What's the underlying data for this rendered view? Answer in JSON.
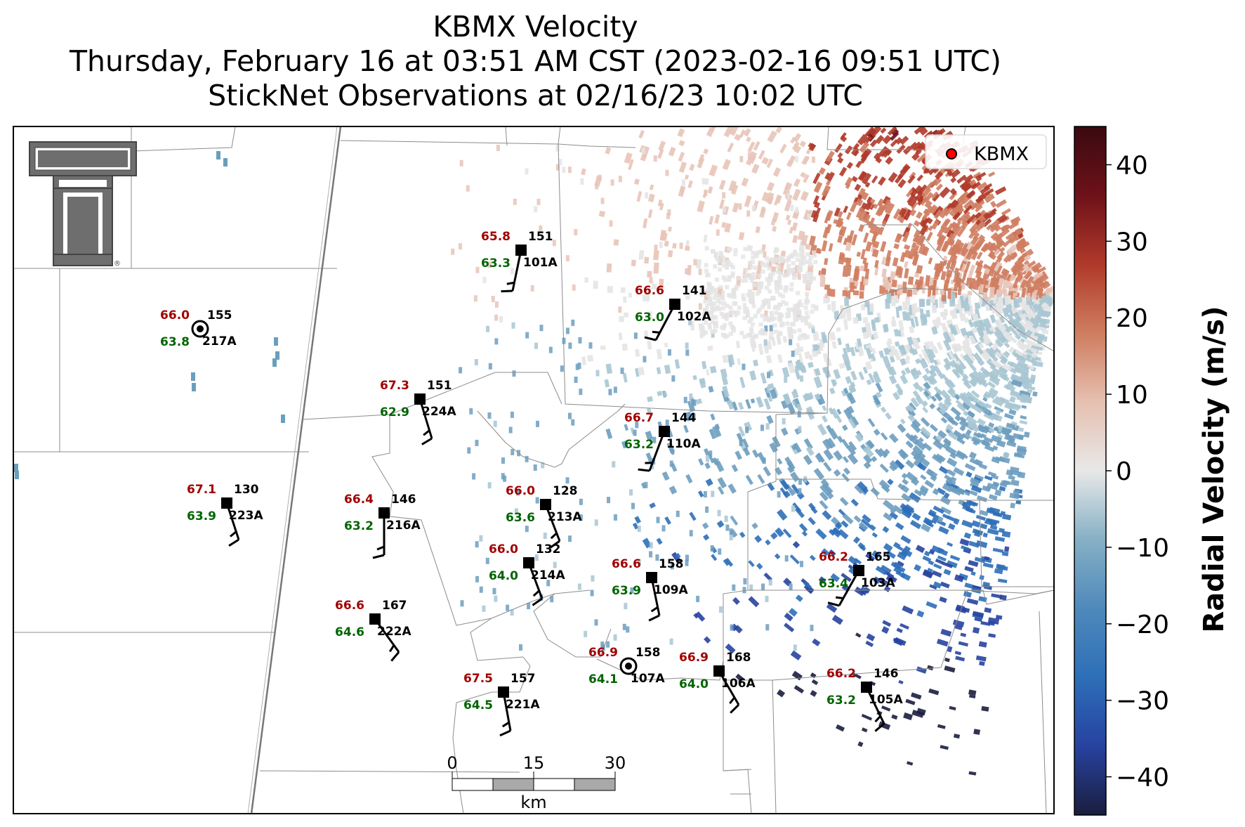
{
  "title": {
    "line1": "KBMX Velocity",
    "line2": "Thursday, February 16 at 03:51 AM CST (2023-02-16 09:51 UTC)",
    "line3": "StickNet Observations at 02/16/23 10:02 UTC"
  },
  "legend": {
    "label": "KBMX",
    "marker_color": "#ff0000",
    "placement": "top-right"
  },
  "logo": {
    "text": "TT",
    "mark": "®",
    "color": "#666666"
  },
  "colorbar": {
    "label": "Radial Velocity (m/s)",
    "min": -45,
    "max": 45,
    "ticks": [
      "40",
      "30",
      "20",
      "10",
      "0",
      "−10",
      "−20",
      "−30",
      "−40"
    ],
    "tick_values": [
      40,
      30,
      20,
      10,
      0,
      -10,
      -20,
      -30,
      -40
    ],
    "colors": [
      "#1a1e3e",
      "#2742a0",
      "#2d6fb8",
      "#6d9dbf",
      "#a8c6d3",
      "#e4e4e4",
      "#e8c4b8",
      "#cf7d60",
      "#b03a2a",
      "#6e1119",
      "#3a0a10"
    ]
  },
  "scalebar": {
    "ticks": [
      "0",
      "15",
      "30"
    ],
    "unit": "km"
  },
  "station_marker_colors": {
    "temperature": "#a10000",
    "dewpoint": "#006400"
  },
  "stations": [
    {
      "id": "101A",
      "temp": "65.8",
      "dew": "63.3",
      "dir": "151"
    },
    {
      "id": "102A",
      "temp": "66.6",
      "dew": "63.0",
      "dir": "141"
    },
    {
      "id": "217A",
      "temp": "66.0",
      "dew": "63.8",
      "dir": "155"
    },
    {
      "id": "224A",
      "temp": "67.3",
      "dew": "62.9",
      "dir": "151"
    },
    {
      "id": "110A",
      "temp": "66.7",
      "dew": "63.2",
      "dir": "144"
    },
    {
      "id": "223A",
      "temp": "67.1",
      "dew": "63.9",
      "dir": "130"
    },
    {
      "id": "216A",
      "temp": "66.4",
      "dew": "63.2",
      "dir": "146"
    },
    {
      "id": "213A",
      "temp": "66.0",
      "dew": "63.6",
      "dir": "128"
    },
    {
      "id": "214A",
      "temp": "66.0",
      "dew": "64.0",
      "dir": "132"
    },
    {
      "id": "109A",
      "temp": "66.6",
      "dew": "63.9",
      "dir": "158"
    },
    {
      "id": "103A",
      "temp": "66.2",
      "dew": "63.4",
      "dir": "165"
    },
    {
      "id": "222A",
      "temp": "66.6",
      "dew": "64.6",
      "dir": "167"
    },
    {
      "id": "107A",
      "temp": "66.9",
      "dew": "64.1",
      "dir": "158"
    },
    {
      "id": "106A",
      "temp": "66.9",
      "dew": "64.0",
      "dir": "168"
    },
    {
      "id": "221A",
      "temp": "67.5",
      "dew": "64.5",
      "dir": "157"
    },
    {
      "id": "105A",
      "temp": "66.2",
      "dew": "63.2",
      "dir": "146"
    }
  ]
}
